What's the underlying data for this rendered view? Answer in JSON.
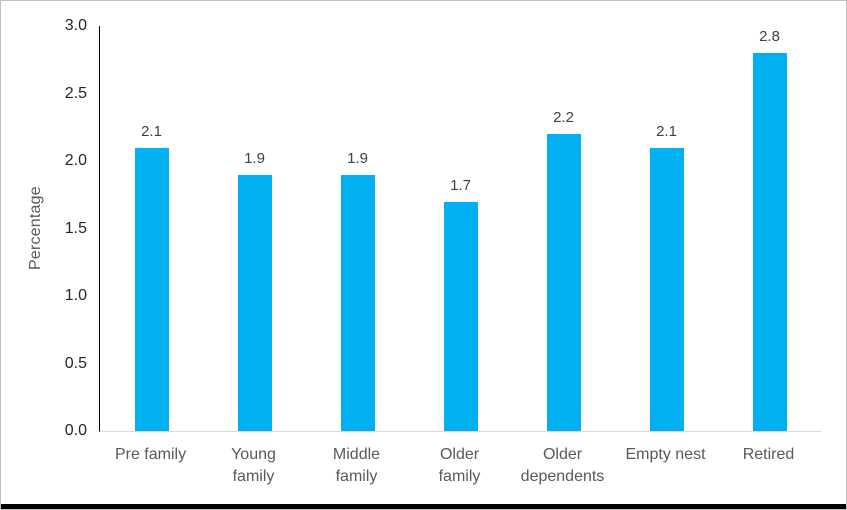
{
  "chart_data": {
    "type": "bar",
    "title": "",
    "categories": [
      "Pre family",
      "Young family",
      "Middle family",
      "Older family",
      "Older dependents",
      "Empty nest",
      "Retired"
    ],
    "category_labels_display": [
      "Pre family",
      "Young\nfamily",
      "Middle\nfamily",
      "Older\nfamily",
      "Older\ndependents",
      "Empty nest",
      "Retired"
    ],
    "values": [
      2.1,
      1.9,
      1.9,
      1.7,
      2.2,
      2.1,
      2.8
    ],
    "data_labels": [
      "2.1",
      "1.9",
      "1.9",
      "1.7",
      "2.2",
      "2.1",
      "2.8"
    ],
    "xlabel": "",
    "ylabel": "Percentage",
    "ylim": [
      0,
      3
    ],
    "yticks": [
      "0.0",
      "0.5",
      "1.0",
      "1.5",
      "2.0",
      "2.5",
      "3.0"
    ],
    "grid": false,
    "legend": false,
    "colors": {
      "bar": "#00B0F0",
      "tick_labels": "#262626",
      "data_labels": "#404040",
      "category_labels": "#595959",
      "y_axis_title": "#595959",
      "axis_line": "#000000",
      "baseline": "#D9D9D9",
      "frame_border": "#BFBFBF",
      "bottom_edge": "#000000",
      "background": "#FFFFFF"
    }
  }
}
